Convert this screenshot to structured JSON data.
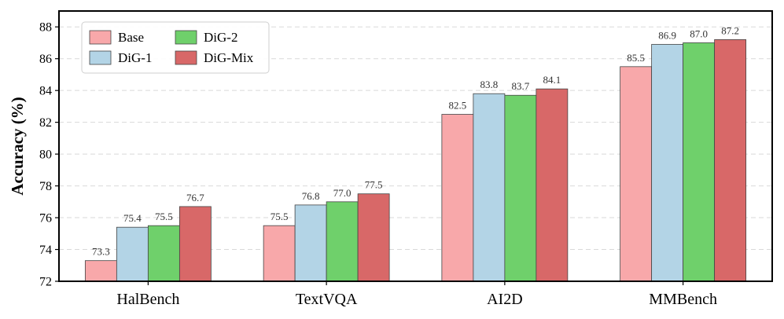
{
  "chart_data": {
    "type": "bar",
    "title": "",
    "xlabel": "",
    "ylabel": "Accuracy (%)",
    "ylim": [
      72,
      89
    ],
    "yticks": [
      72,
      74,
      76,
      78,
      80,
      82,
      84,
      86,
      88
    ],
    "grid": true,
    "legend_position": "top-left",
    "categories": [
      "HalBench",
      "TextVQA",
      "AI2D",
      "MMBench"
    ],
    "series": [
      {
        "name": "Base",
        "color": "#f8a8aa",
        "values": [
          73.3,
          75.5,
          82.5,
          85.5
        ],
        "labels": [
          "73.3",
          "75.5",
          "82.5",
          "85.5"
        ]
      },
      {
        "name": "DiG-1",
        "color": "#b3d4e6",
        "values": [
          75.4,
          76.8,
          83.8,
          86.9
        ],
        "labels": [
          "75.4",
          "76.8",
          "83.8",
          "86.9"
        ]
      },
      {
        "name": "DiG-2",
        "color": "#6fd06b",
        "values": [
          75.5,
          77.0,
          83.7,
          87.0
        ],
        "labels": [
          "75.5",
          "77.0",
          "83.7",
          "87.0"
        ]
      },
      {
        "name": "DiG-Mix",
        "color": "#d86868",
        "values": [
          76.7,
          77.5,
          84.1,
          87.2
        ],
        "labels": [
          "76.7",
          "77.5",
          "84.1",
          "87.2"
        ]
      }
    ]
  }
}
